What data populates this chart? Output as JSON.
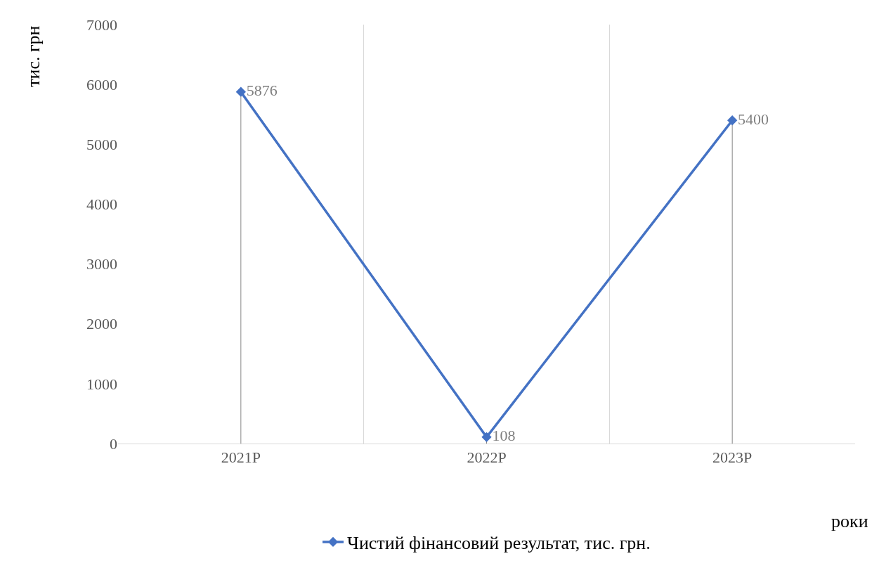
{
  "chart_data": {
    "type": "line",
    "categories": [
      "2021Р",
      "2022Р",
      "2023Р"
    ],
    "series": [
      {
        "name": "Чистий фінансовий результат, тис. грн.",
        "color": "#4472c4",
        "values": [
          5876,
          108,
          5400
        ]
      }
    ],
    "ylabel": "тис. грн",
    "xlabel": "роки",
    "ylim": [
      0,
      7000
    ],
    "yticks": [
      0,
      1000,
      2000,
      3000,
      4000,
      5000,
      6000,
      7000
    ],
    "grid": "x",
    "legend": "bottom",
    "marker": "diamond",
    "line_style": "solid",
    "data_labels": true
  }
}
